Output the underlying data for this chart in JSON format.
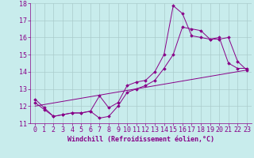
{
  "xlabel": "Windchill (Refroidissement éolien,°C)",
  "bg_color": "#c8ecec",
  "line_color": "#880088",
  "grid_color": "#aacccc",
  "xlim": [
    -0.5,
    23.5
  ],
  "ylim": [
    11,
    18
  ],
  "xticks": [
    0,
    1,
    2,
    3,
    4,
    5,
    6,
    7,
    8,
    9,
    10,
    11,
    12,
    13,
    14,
    15,
    16,
    17,
    18,
    19,
    20,
    21,
    22,
    23
  ],
  "yticks": [
    11,
    12,
    13,
    14,
    15,
    16,
    17,
    18
  ],
  "line1_x": [
    0,
    1,
    2,
    3,
    4,
    5,
    6,
    7,
    8,
    9,
    10,
    11,
    12,
    13,
    14,
    15,
    16,
    17,
    18,
    19,
    20,
    21,
    22,
    23
  ],
  "line1_y": [
    12.4,
    11.9,
    11.4,
    11.5,
    11.6,
    11.6,
    11.7,
    11.3,
    11.4,
    12.0,
    12.8,
    13.0,
    13.2,
    13.5,
    14.2,
    15.0,
    16.6,
    16.5,
    16.4,
    15.9,
    16.0,
    14.5,
    14.2,
    14.2
  ],
  "line2_x": [
    0,
    1,
    2,
    3,
    4,
    5,
    6,
    7,
    8,
    9,
    10,
    11,
    12,
    13,
    14,
    15,
    16,
    17,
    18,
    19,
    20,
    21,
    22,
    23
  ],
  "line2_y": [
    12.2,
    11.8,
    11.4,
    11.5,
    11.6,
    11.6,
    11.7,
    12.6,
    11.9,
    12.2,
    13.2,
    13.4,
    13.5,
    14.0,
    15.0,
    17.85,
    17.4,
    16.1,
    16.0,
    15.9,
    15.9,
    16.0,
    14.6,
    14.1
  ],
  "line3_x": [
    0,
    23
  ],
  "line3_y": [
    12.0,
    14.1
  ],
  "fontsize_xlabel": 6,
  "tick_fontsize": 6
}
